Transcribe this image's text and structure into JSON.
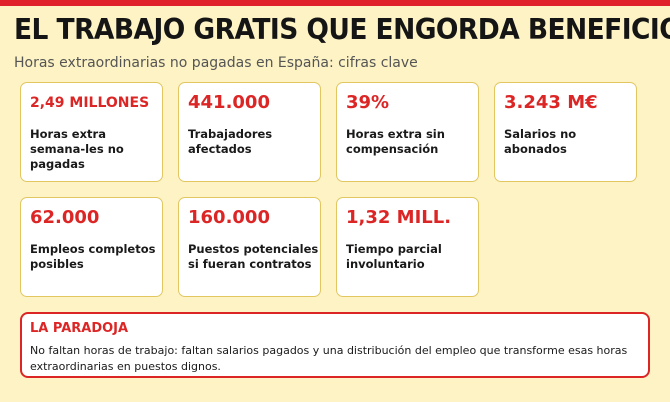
{
  "header": {
    "title": "EL TRABAJO GRATIS QUE ENGORDA BENEFICIOS",
    "subtitle": "Horas extraordinarias no pagadas en España: cifras clave"
  },
  "cards": [
    {
      "value": "2,49 MILLONES",
      "label": "Horas extra semana-les no pagadas"
    },
    {
      "value": "441.000",
      "label": "Trabajadores afectados"
    },
    {
      "value": "39%",
      "label": "Horas extra sin compensación"
    },
    {
      "value": "3.243 M€",
      "label": "Salarios no abonados"
    },
    {
      "value": "62.000",
      "label": "Empleos completos posibles"
    },
    {
      "value": "160.000",
      "label": "Puestos potenciales si fueran contratos"
    },
    {
      "value": "1,32 MILL.",
      "label": "Tiempo parcial involuntario"
    }
  ],
  "paradox": {
    "title": "LA PARADOJA",
    "text": "No faltan horas de trabajo: faltan salarios pagados y una distribución del empleo que transforme esas horas extraordinarias en puestos dignos."
  },
  "colors": {
    "background": "#fdf3c4",
    "accent_red": "#dc2626",
    "card_border": "#e2c761"
  }
}
